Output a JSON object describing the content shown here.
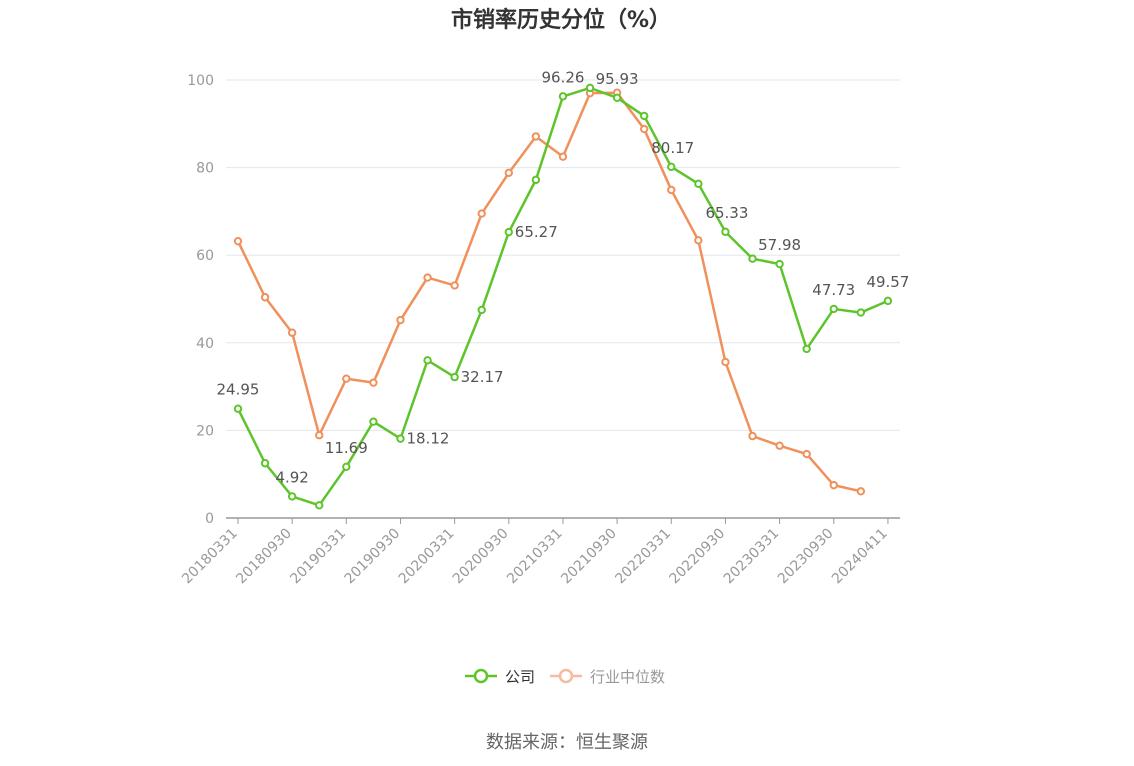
{
  "chart_data": {
    "type": "line",
    "title": "市销率历史分位（%）",
    "source": "数据来源：恒生聚源",
    "ylim": [
      0,
      100
    ],
    "yticks": [
      0,
      20,
      40,
      60,
      80,
      100
    ],
    "grid": true,
    "legend_position": "bottom-center",
    "x_tick_labels": [
      "20180331",
      "20180930",
      "20190331",
      "20190930",
      "20200331",
      "20200930",
      "20210331",
      "20210930",
      "20220331",
      "20220930",
      "20230331",
      "20230930",
      "20240411"
    ],
    "x": [
      "20180331",
      "20180630",
      "20180930",
      "20181231",
      "20190331",
      "20190630",
      "20190930",
      "20191231",
      "20200331",
      "20200630",
      "20200930",
      "20201231",
      "20210331",
      "20210630",
      "20210930",
      "20211231",
      "20220331",
      "20220630",
      "20220930",
      "20221231",
      "20230331",
      "20230630",
      "20230930",
      "20231231",
      "20240411"
    ],
    "series": [
      {
        "name": "公司",
        "color": "#5ec42c",
        "values": [
          24.95,
          12.5,
          4.92,
          2.9,
          11.69,
          22.0,
          18.12,
          36.0,
          32.17,
          47.5,
          65.27,
          77.2,
          96.26,
          98.2,
          95.93,
          91.8,
          80.17,
          76.3,
          65.33,
          59.2,
          57.98,
          38.6,
          47.73,
          46.9,
          49.57
        ],
        "labels": {
          "0": "24.95",
          "2": "4.92",
          "4": "11.69",
          "6": "18.12",
          "8": "32.17",
          "10": "65.27",
          "12": "96.26",
          "14": "95.93",
          "16": "80.17",
          "18": "65.33",
          "20": "57.98",
          "22": "47.73",
          "24": "49.57"
        }
      },
      {
        "name": "行业中位数",
        "color": "#f0905a",
        "legend_color": "#f7b9a0",
        "values": [
          63.2,
          50.4,
          42.3,
          18.9,
          31.8,
          30.9,
          45.2,
          54.9,
          53.1,
          69.5,
          78.8,
          87.1,
          82.5,
          97.0,
          97.1,
          88.8,
          74.9,
          63.4,
          35.6,
          18.7,
          16.5,
          14.6,
          7.5,
          6.1,
          null
        ]
      }
    ]
  }
}
